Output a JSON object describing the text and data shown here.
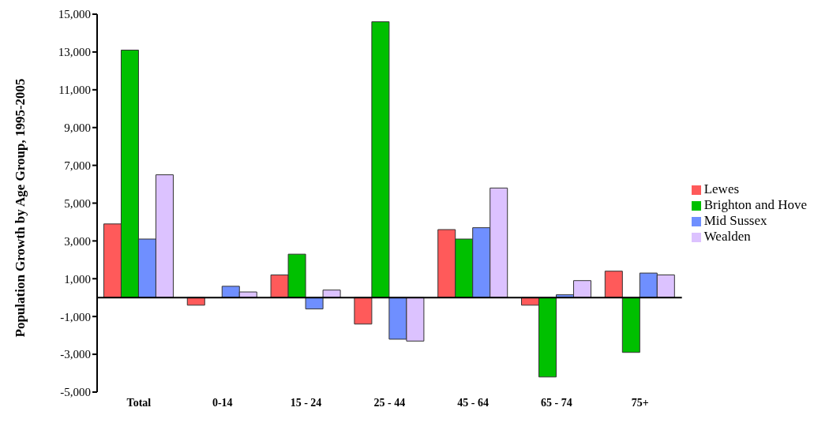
{
  "chart_data": {
    "type": "bar",
    "ylabel": "Population Growth by Age Group, 1995-2005",
    "categories": [
      "Total",
      "0-14",
      "15 - 24",
      "25 - 44",
      "45 - 64",
      "65 - 74",
      "75+"
    ],
    "series": [
      {
        "name": "Lewes",
        "color": "#ff5a5a",
        "values": [
          3900,
          -400,
          1200,
          -1400,
          3600,
          -400,
          1400
        ]
      },
      {
        "name": "Brighton and Hove",
        "color": "#00c000",
        "values": [
          13100,
          0,
          2300,
          14600,
          3100,
          -4200,
          -2900
        ]
      },
      {
        "name": "Mid Sussex",
        "color": "#6f8fff",
        "values": [
          3100,
          600,
          -600,
          -2200,
          3700,
          150,
          1300
        ]
      },
      {
        "name": "Wealden",
        "color": "#dcc2ff",
        "values": [
          6500,
          300,
          400,
          -2300,
          5800,
          900,
          1200
        ]
      }
    ],
    "ylim": [
      -5000,
      15000
    ],
    "yticks": [
      {
        "value": -5000,
        "label": "-5,000"
      },
      {
        "value": -3000,
        "label": "-3,000"
      },
      {
        "value": -1000,
        "label": "-1,000"
      },
      {
        "value": 1000,
        "label": "1,000"
      },
      {
        "value": 3000,
        "label": "3,000"
      },
      {
        "value": 5000,
        "label": "5,000"
      },
      {
        "value": 7000,
        "label": "7,000"
      },
      {
        "value": 9000,
        "label": "9,000"
      },
      {
        "value": 11000,
        "label": "11,000"
      },
      {
        "value": 13000,
        "label": "13,000"
      },
      {
        "value": 15000,
        "label": "15,000"
      }
    ],
    "grid": false,
    "legend": "right"
  }
}
